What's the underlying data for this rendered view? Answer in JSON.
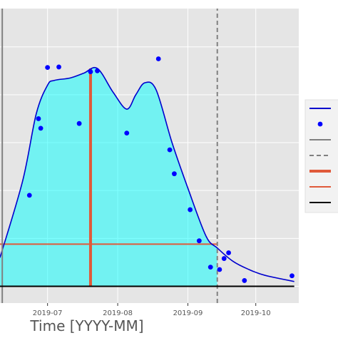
{
  "chart_data": {
    "type": "line",
    "xlabel": "Time [YYYY-MM]",
    "x_ticks": [
      "2019-07",
      "2019-08",
      "2019-09",
      "2019-10"
    ],
    "xlim": [
      "2019-06-10",
      "2019-10-20"
    ],
    "ylim": [
      -0.35,
      5.8
    ],
    "grid": true,
    "legend_placement": "right",
    "colors": {
      "panel": "#e5e5e5",
      "grid": "#ffffff",
      "fill": "#00ffff",
      "curve": "#0000cd",
      "points": "#0000ff",
      "vline_solid": "#808080",
      "vline_dashed": "#808080",
      "thick_line": "#e05a3a",
      "hline": "#e05a3a",
      "baseline": "#000000"
    },
    "series": [
      {
        "kind": "curve_with_fill",
        "x": [
          "2019-06-10",
          "2019-06-20",
          "2019-06-26",
          "2019-07-01",
          "2019-07-04",
          "2019-07-11",
          "2019-07-17",
          "2019-07-23",
          "2019-07-30",
          "2019-08-05",
          "2019-08-09",
          "2019-08-13",
          "2019-08-18",
          "2019-08-25",
          "2019-09-01",
          "2019-09-09",
          "2019-09-14",
          "2019-09-21",
          "2019-09-28",
          "2019-10-05",
          "2019-10-18"
        ],
        "y": [
          0.6,
          2.2,
          3.6,
          4.2,
          4.3,
          4.35,
          4.45,
          4.55,
          4.05,
          3.7,
          4.0,
          4.25,
          4.1,
          3.0,
          2.05,
          1.05,
          0.8,
          0.52,
          0.35,
          0.23,
          0.1
        ],
        "fill_from_x": "2019-06-10",
        "fill_to_x": "2019-09-14"
      },
      {
        "kind": "points",
        "x": [
          "2019-06-23",
          "2019-06-27",
          "2019-06-28",
          "2019-07-01",
          "2019-07-06",
          "2019-07-15",
          "2019-07-20",
          "2019-07-23",
          "2019-08-05",
          "2019-08-19",
          "2019-08-24",
          "2019-08-26",
          "2019-09-02",
          "2019-09-06",
          "2019-09-11",
          "2019-09-15",
          "2019-09-17",
          "2019-09-19",
          "2019-09-26",
          "2019-10-17"
        ],
        "y": [
          1.9,
          3.5,
          3.3,
          4.57,
          4.58,
          3.4,
          4.48,
          4.5,
          3.2,
          4.75,
          2.85,
          2.35,
          1.6,
          0.95,
          0.4,
          0.35,
          0.58,
          0.7,
          0.12,
          0.22
        ]
      },
      {
        "kind": "vline",
        "style": "solid",
        "x": "2019-06-11",
        "y_range": [
          -0.35,
          5.8
        ]
      },
      {
        "kind": "vline",
        "style": "dashed",
        "x": "2019-09-14",
        "y_range": [
          -0.35,
          5.8
        ]
      },
      {
        "kind": "vline",
        "style": "thick",
        "x": "2019-07-20",
        "y_range": [
          0.0,
          4.55
        ]
      },
      {
        "kind": "hline",
        "x_range": [
          "2019-06-10",
          "2019-09-14"
        ],
        "y": 0.88
      },
      {
        "kind": "hline",
        "style": "baseline",
        "x_range": [
          "2019-06-10",
          "2019-10-18"
        ],
        "y": 0.0
      }
    ],
    "legend": {
      "entries": [
        {
          "kind": "line",
          "name": ""
        },
        {
          "kind": "point",
          "name": ""
        },
        {
          "kind": "vline_solid",
          "name": ""
        },
        {
          "kind": "vline_dashed",
          "name": ""
        },
        {
          "kind": "thick_line",
          "name": ""
        },
        {
          "kind": "hline",
          "name": ""
        },
        {
          "kind": "baseline",
          "name": ""
        }
      ]
    }
  }
}
